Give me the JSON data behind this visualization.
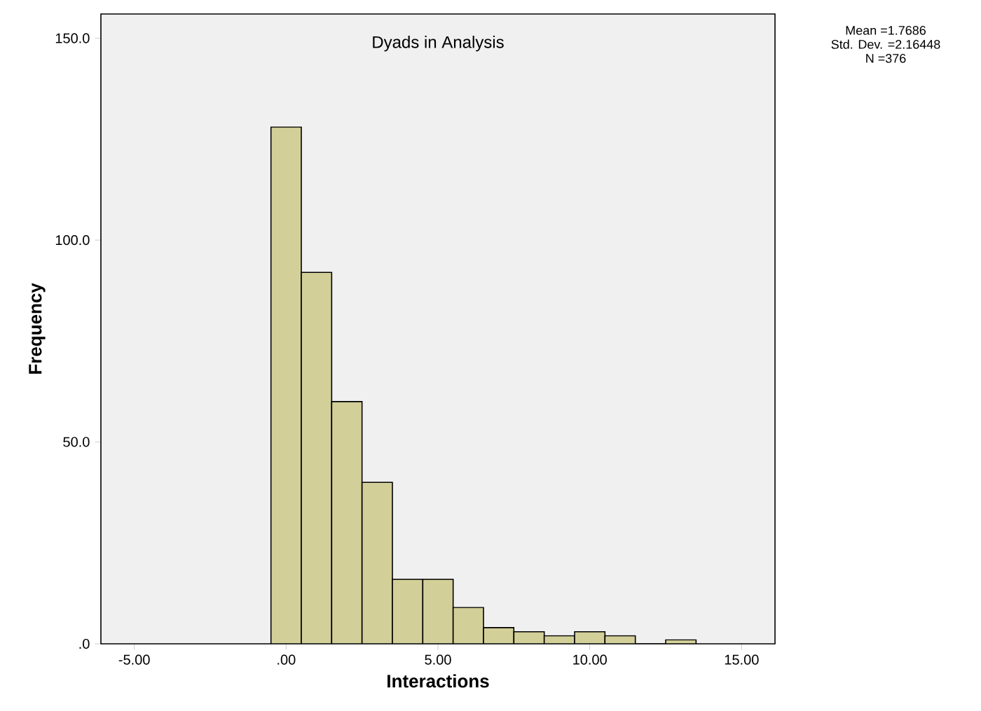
{
  "chart_data": {
    "type": "histogram",
    "title": "Dyads in Analysis",
    "xlabel": "Interactions",
    "ylabel": "Frequency",
    "bins": [
      -0.5,
      0.5,
      1.5,
      2.5,
      3.5,
      4.5,
      5.5,
      6.5,
      7.5,
      8.5,
      9.5,
      10.5,
      11.5,
      12.5,
      13.5
    ],
    "values": [
      128,
      92,
      60,
      40,
      16,
      16,
      9,
      4,
      3,
      2,
      3,
      2,
      0,
      1
    ],
    "color": "#d3cf99",
    "xlim": [
      -6.1,
      16.1
    ],
    "ylim": [
      0,
      156
    ],
    "xticks": [
      {
        "value": -5,
        "label": "-5.00"
      },
      {
        "value": 0,
        "label": ".00"
      },
      {
        "value": 5,
        "label": "5.00"
      },
      {
        "value": 10,
        "label": "10.00"
      },
      {
        "value": 15,
        "label": "15.00"
      }
    ],
    "yticks": [
      {
        "value": 0,
        "label": ".0"
      },
      {
        "value": 50,
        "label": "50.0"
      },
      {
        "value": 100,
        "label": "100.0"
      },
      {
        "value": 150,
        "label": "150.0"
      }
    ],
    "grid": false,
    "annotations": [
      "Mean =1.7686",
      "Std. Dev. =2.16448",
      "N =376"
    ]
  }
}
